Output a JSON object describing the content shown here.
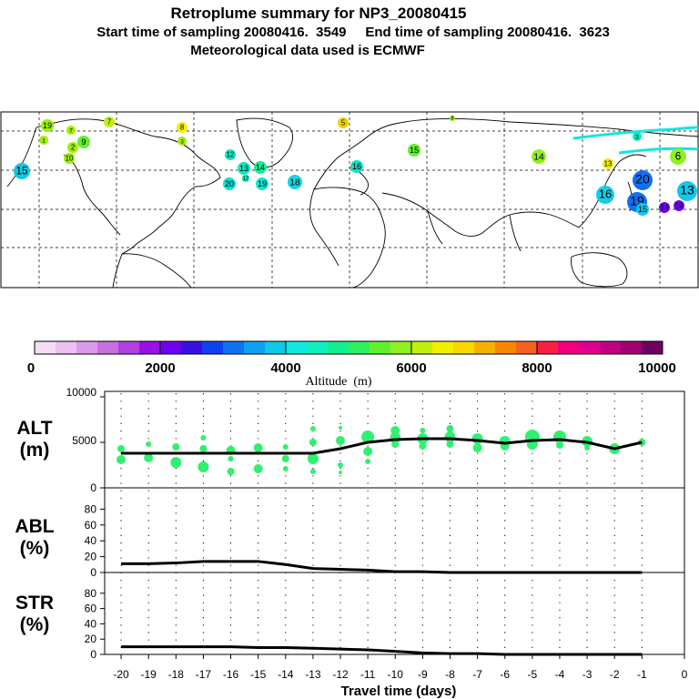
{
  "header": {
    "title": "Retroplume summary for NP3_20080415",
    "sampling": "Start time of sampling 20080416.  3549     End time of sampling 20080416.  3623",
    "met": "Meteorological data used is ECMWF"
  },
  "colorbar": {
    "ticks": [
      "0",
      "2000",
      "4000",
      "6000",
      "8000",
      "10000"
    ],
    "label": "Altitude  (m)",
    "colors": [
      "#f5ddf5",
      "#ecc0f0",
      "#dc9ae8",
      "#c870e0",
      "#b040e0",
      "#9a10e8",
      "#7000f0",
      "#3a10e0",
      "#1040f0",
      "#1070f0",
      "#10a0f0",
      "#10c8e8",
      "#10e8e0",
      "#10f0c0",
      "#10f090",
      "#30f060",
      "#60f030",
      "#90f020",
      "#c0f010",
      "#f0f000",
      "#f8d800",
      "#f8b000",
      "#f88800",
      "#f86020",
      "#f82040",
      "#f00080",
      "#e00090",
      "#c00080",
      "#a00070",
      "#700060"
    ]
  },
  "map_labels": [
    {
      "t": "19",
      "c": "#9ef000"
    },
    {
      "t": "7",
      "c": "#9ef000"
    },
    {
      "t": "7",
      "c": "#c0f010"
    },
    {
      "t": "8",
      "c": "#9ef000"
    },
    {
      "t": "5",
      "c": "#f0d000"
    },
    {
      "t": "8",
      "c": "#f0f000"
    },
    {
      "t": "9",
      "c": "#60f030"
    },
    {
      "t": "12",
      "c": "#10e8c0"
    },
    {
      "t": "13",
      "c": "#10e8c0"
    },
    {
      "t": "14",
      "c": "#10f090"
    },
    {
      "t": "15",
      "c": "#10c8e8"
    },
    {
      "t": "20",
      "c": "#10e0d0"
    },
    {
      "t": "19",
      "c": "#10e8d0"
    },
    {
      "t": "18",
      "c": "#10d8e8"
    },
    {
      "t": "17",
      "c": "#10e8c0"
    },
    {
      "t": "16",
      "c": "#10e0c0"
    },
    {
      "t": "15",
      "c": "#60f030"
    },
    {
      "t": "14",
      "c": "#90f020"
    },
    {
      "t": "13",
      "c": "#f0f000"
    },
    {
      "t": "16",
      "c": "#10d0e8"
    },
    {
      "t": "20",
      "c": "#1070f0"
    },
    {
      "t": "19",
      "c": "#1070f0"
    },
    {
      "t": "15",
      "c": "#10c8e8"
    },
    {
      "t": "13",
      "c": "#10c8e8"
    },
    {
      "t": "14",
      "c": "#7000f0"
    },
    {
      "t": "19",
      "c": "#7000f0"
    },
    {
      "t": "6",
      "c": "#90f020"
    },
    {
      "t": "3",
      "c": "#10e8c0"
    },
    {
      "t": "1",
      "c": "#9ef000"
    },
    {
      "t": "2",
      "c": "#9ef000"
    },
    {
      "t": "10",
      "c": "#9ef000"
    },
    {
      "t": "3",
      "c": "#9ef000"
    }
  ],
  "panels": {
    "alt_label": "ALT\n(m)",
    "abl_label": "ABL\n(%)",
    "str_label": "STR\n(%)",
    "alt_ticks": [
      "10000",
      "5000",
      "0"
    ],
    "pct_ticks": [
      "80",
      "60",
      "40",
      "20",
      "0"
    ],
    "xlabel": "Travel time (days)",
    "xticks": [
      "-20",
      "-19",
      "-18",
      "-17",
      "-16",
      "-15",
      "-14",
      "-13",
      "-12",
      "-11",
      "-10",
      "-9",
      "-8",
      "-7",
      "-6",
      "-5",
      "-4",
      "-3",
      "-2",
      "-1",
      "0"
    ]
  },
  "chart_data": [
    {
      "type": "scatter",
      "title": "ALT",
      "ylabel": "m",
      "ylim": [
        0,
        10000
      ],
      "xlim": [
        -20,
        0
      ],
      "line": {
        "x": [
          -20,
          -19,
          -18,
          -17,
          -16,
          -15,
          -14,
          -13,
          -12,
          -11,
          -10,
          -9,
          -8,
          -7,
          -6,
          -5,
          -4,
          -3,
          -2,
          -1
        ],
        "y": [
          3800,
          3800,
          3800,
          3800,
          3800,
          3800,
          3800,
          3800,
          4300,
          5000,
          5300,
          5400,
          5400,
          5200,
          4900,
          5200,
          5300,
          5000,
          4300,
          5000
        ]
      },
      "points": [
        {
          "x": -20,
          "y": 3100,
          "r": 5
        },
        {
          "x": -20,
          "y": 4300,
          "r": 4
        },
        {
          "x": -19,
          "y": 4800,
          "r": 3
        },
        {
          "x": -19,
          "y": 3300,
          "r": 5
        },
        {
          "x": -18,
          "y": 4500,
          "r": 4
        },
        {
          "x": -18,
          "y": 2800,
          "r": 6
        },
        {
          "x": -17,
          "y": 5500,
          "r": 3
        },
        {
          "x": -17,
          "y": 4300,
          "r": 4
        },
        {
          "x": -17,
          "y": 2300,
          "r": 6
        },
        {
          "x": -16,
          "y": 4100,
          "r": 5
        },
        {
          "x": -16,
          "y": 1800,
          "r": 4
        },
        {
          "x": -16,
          "y": 3200,
          "r": 3
        },
        {
          "x": -15,
          "y": 4400,
          "r": 5
        },
        {
          "x": -15,
          "y": 2100,
          "r": 5
        },
        {
          "x": -14,
          "y": 4500,
          "r": 3
        },
        {
          "x": -14,
          "y": 3200,
          "r": 4
        },
        {
          "x": -14,
          "y": 2100,
          "r": 3
        },
        {
          "x": -13,
          "y": 6500,
          "r": 3
        },
        {
          "x": -13,
          "y": 3200,
          "r": 6
        },
        {
          "x": -13,
          "y": 5000,
          "r": 4
        },
        {
          "x": -13,
          "y": 1800,
          "r": 3
        },
        {
          "x": -12,
          "y": 6600,
          "r": 2
        },
        {
          "x": -12,
          "y": 5200,
          "r": 5
        },
        {
          "x": -12,
          "y": 2500,
          "r": 3
        },
        {
          "x": -12,
          "y": 1700,
          "r": 2
        },
        {
          "x": -11,
          "y": 5600,
          "r": 7
        },
        {
          "x": -11,
          "y": 4000,
          "r": 5
        },
        {
          "x": -11,
          "y": 2900,
          "r": 3
        },
        {
          "x": -10,
          "y": 6300,
          "r": 5
        },
        {
          "x": -10,
          "y": 5500,
          "r": 6
        },
        {
          "x": -10,
          "y": 4800,
          "r": 4
        },
        {
          "x": -9,
          "y": 6300,
          "r": 3
        },
        {
          "x": -9,
          "y": 5400,
          "r": 6
        },
        {
          "x": -9,
          "y": 4600,
          "r": 4
        },
        {
          "x": -8,
          "y": 6500,
          "r": 4
        },
        {
          "x": -8,
          "y": 5600,
          "r": 6
        },
        {
          "x": -8,
          "y": 4800,
          "r": 4
        },
        {
          "x": -7,
          "y": 5400,
          "r": 6
        },
        {
          "x": -7,
          "y": 4400,
          "r": 5
        },
        {
          "x": -6,
          "y": 5100,
          "r": 6
        },
        {
          "x": -6,
          "y": 4600,
          "r": 5
        },
        {
          "x": -5,
          "y": 5600,
          "r": 8
        },
        {
          "x": -5,
          "y": 4800,
          "r": 6
        },
        {
          "x": -4,
          "y": 5600,
          "r": 7
        },
        {
          "x": -4,
          "y": 4700,
          "r": 4
        },
        {
          "x": -3,
          "y": 5100,
          "r": 6
        },
        {
          "x": -3,
          "y": 4400,
          "r": 3
        },
        {
          "x": -2,
          "y": 4300,
          "r": 6
        },
        {
          "x": -1,
          "y": 5000,
          "r": 4
        }
      ]
    },
    {
      "type": "line",
      "title": "ABL",
      "ylabel": "%",
      "ylim": [
        0,
        100
      ],
      "x": [
        -20,
        -19,
        -18,
        -17,
        -16,
        -15,
        -14,
        -13,
        -12,
        -11,
        -10,
        -9,
        -8,
        -7,
        -6,
        -5,
        -4,
        -3,
        -2,
        -1
      ],
      "y": [
        11,
        11,
        12,
        14,
        14,
        14,
        10,
        5,
        4,
        3,
        1,
        1,
        0,
        0,
        0,
        0,
        0,
        0,
        0,
        0
      ]
    },
    {
      "type": "line",
      "title": "STR",
      "ylabel": "%",
      "ylim": [
        0,
        100
      ],
      "x": [
        -20,
        -19,
        -18,
        -17,
        -16,
        -15,
        -14,
        -13,
        -12,
        -11,
        -10,
        -9,
        -8,
        -7,
        -6,
        -5,
        -4,
        -3,
        -2,
        -1
      ],
      "y": [
        10,
        10,
        10,
        10,
        10,
        9,
        9,
        8,
        7,
        6,
        4,
        2,
        1,
        1,
        0,
        0,
        0,
        0,
        0,
        0
      ]
    }
  ]
}
